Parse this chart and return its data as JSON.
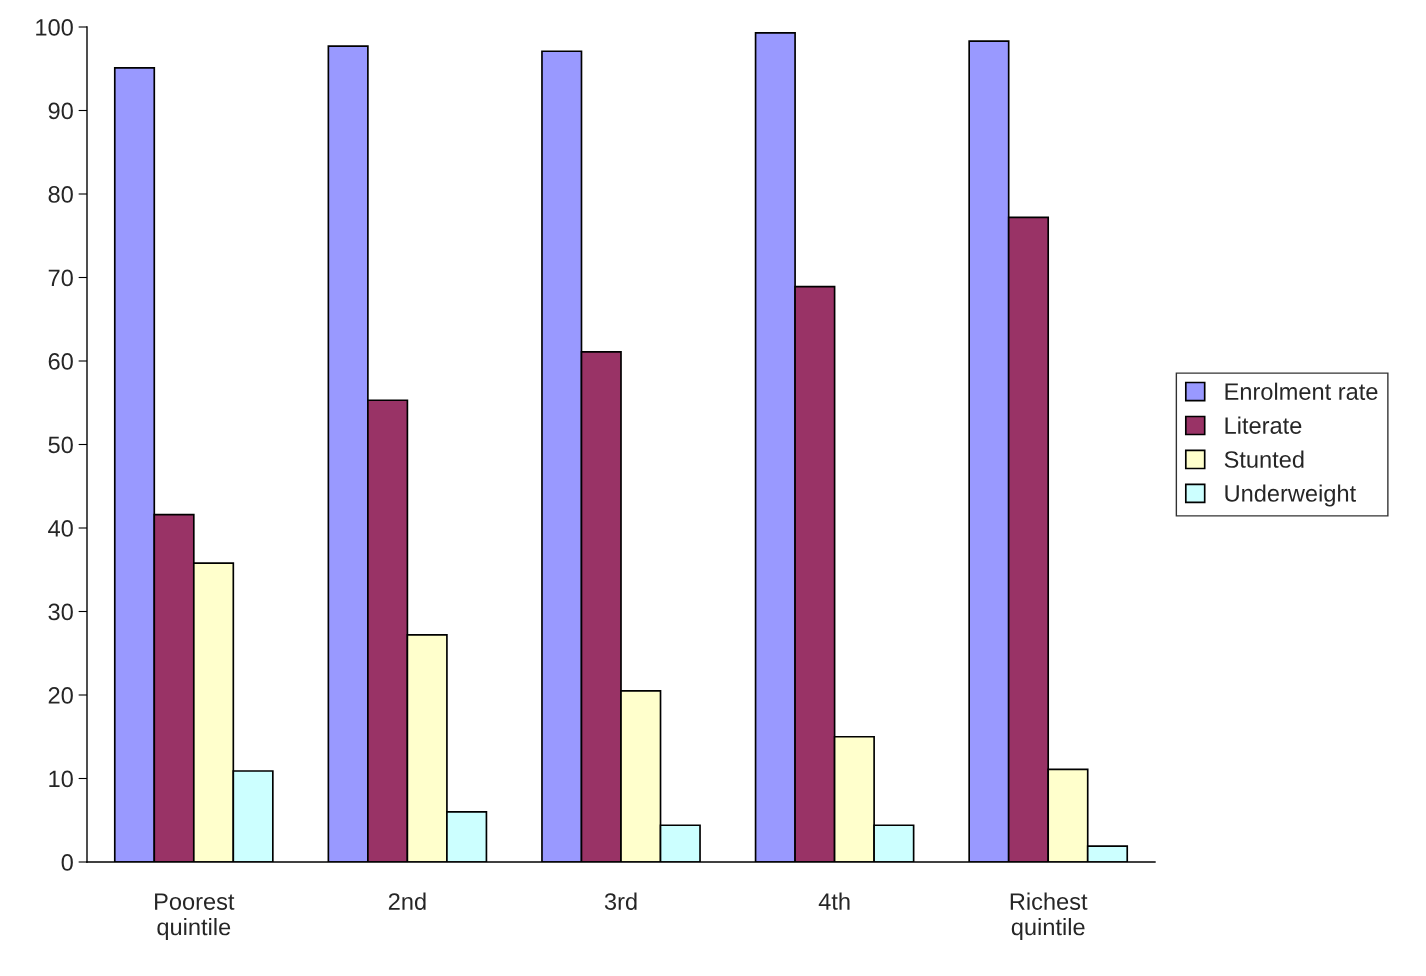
{
  "chart_data": {
    "type": "bar",
    "categories": [
      "Poorest\nquintile",
      "2nd",
      "3rd",
      "4th",
      "Richest\nquintile"
    ],
    "series": [
      {
        "name": "Enrolment rate",
        "color": "#9999ff",
        "values": [
          95.1,
          97.7,
          97.1,
          99.3,
          98.3
        ]
      },
      {
        "name": "Literate",
        "color": "#993366",
        "values": [
          41.6,
          55.3,
          61.1,
          68.9,
          77.2
        ]
      },
      {
        "name": "Stunted",
        "color": "#ffffcc",
        "values": [
          35.8,
          27.2,
          20.5,
          15.0,
          11.1
        ]
      },
      {
        "name": "Underweight",
        "color": "#ccffff",
        "values": [
          10.9,
          6.0,
          4.4,
          4.4,
          1.9
        ]
      }
    ],
    "ylim": [
      0,
      100
    ],
    "yticks": [
      0,
      10,
      20,
      30,
      40,
      50,
      60,
      70,
      80,
      90,
      100
    ],
    "grid": false,
    "legend": "right"
  }
}
